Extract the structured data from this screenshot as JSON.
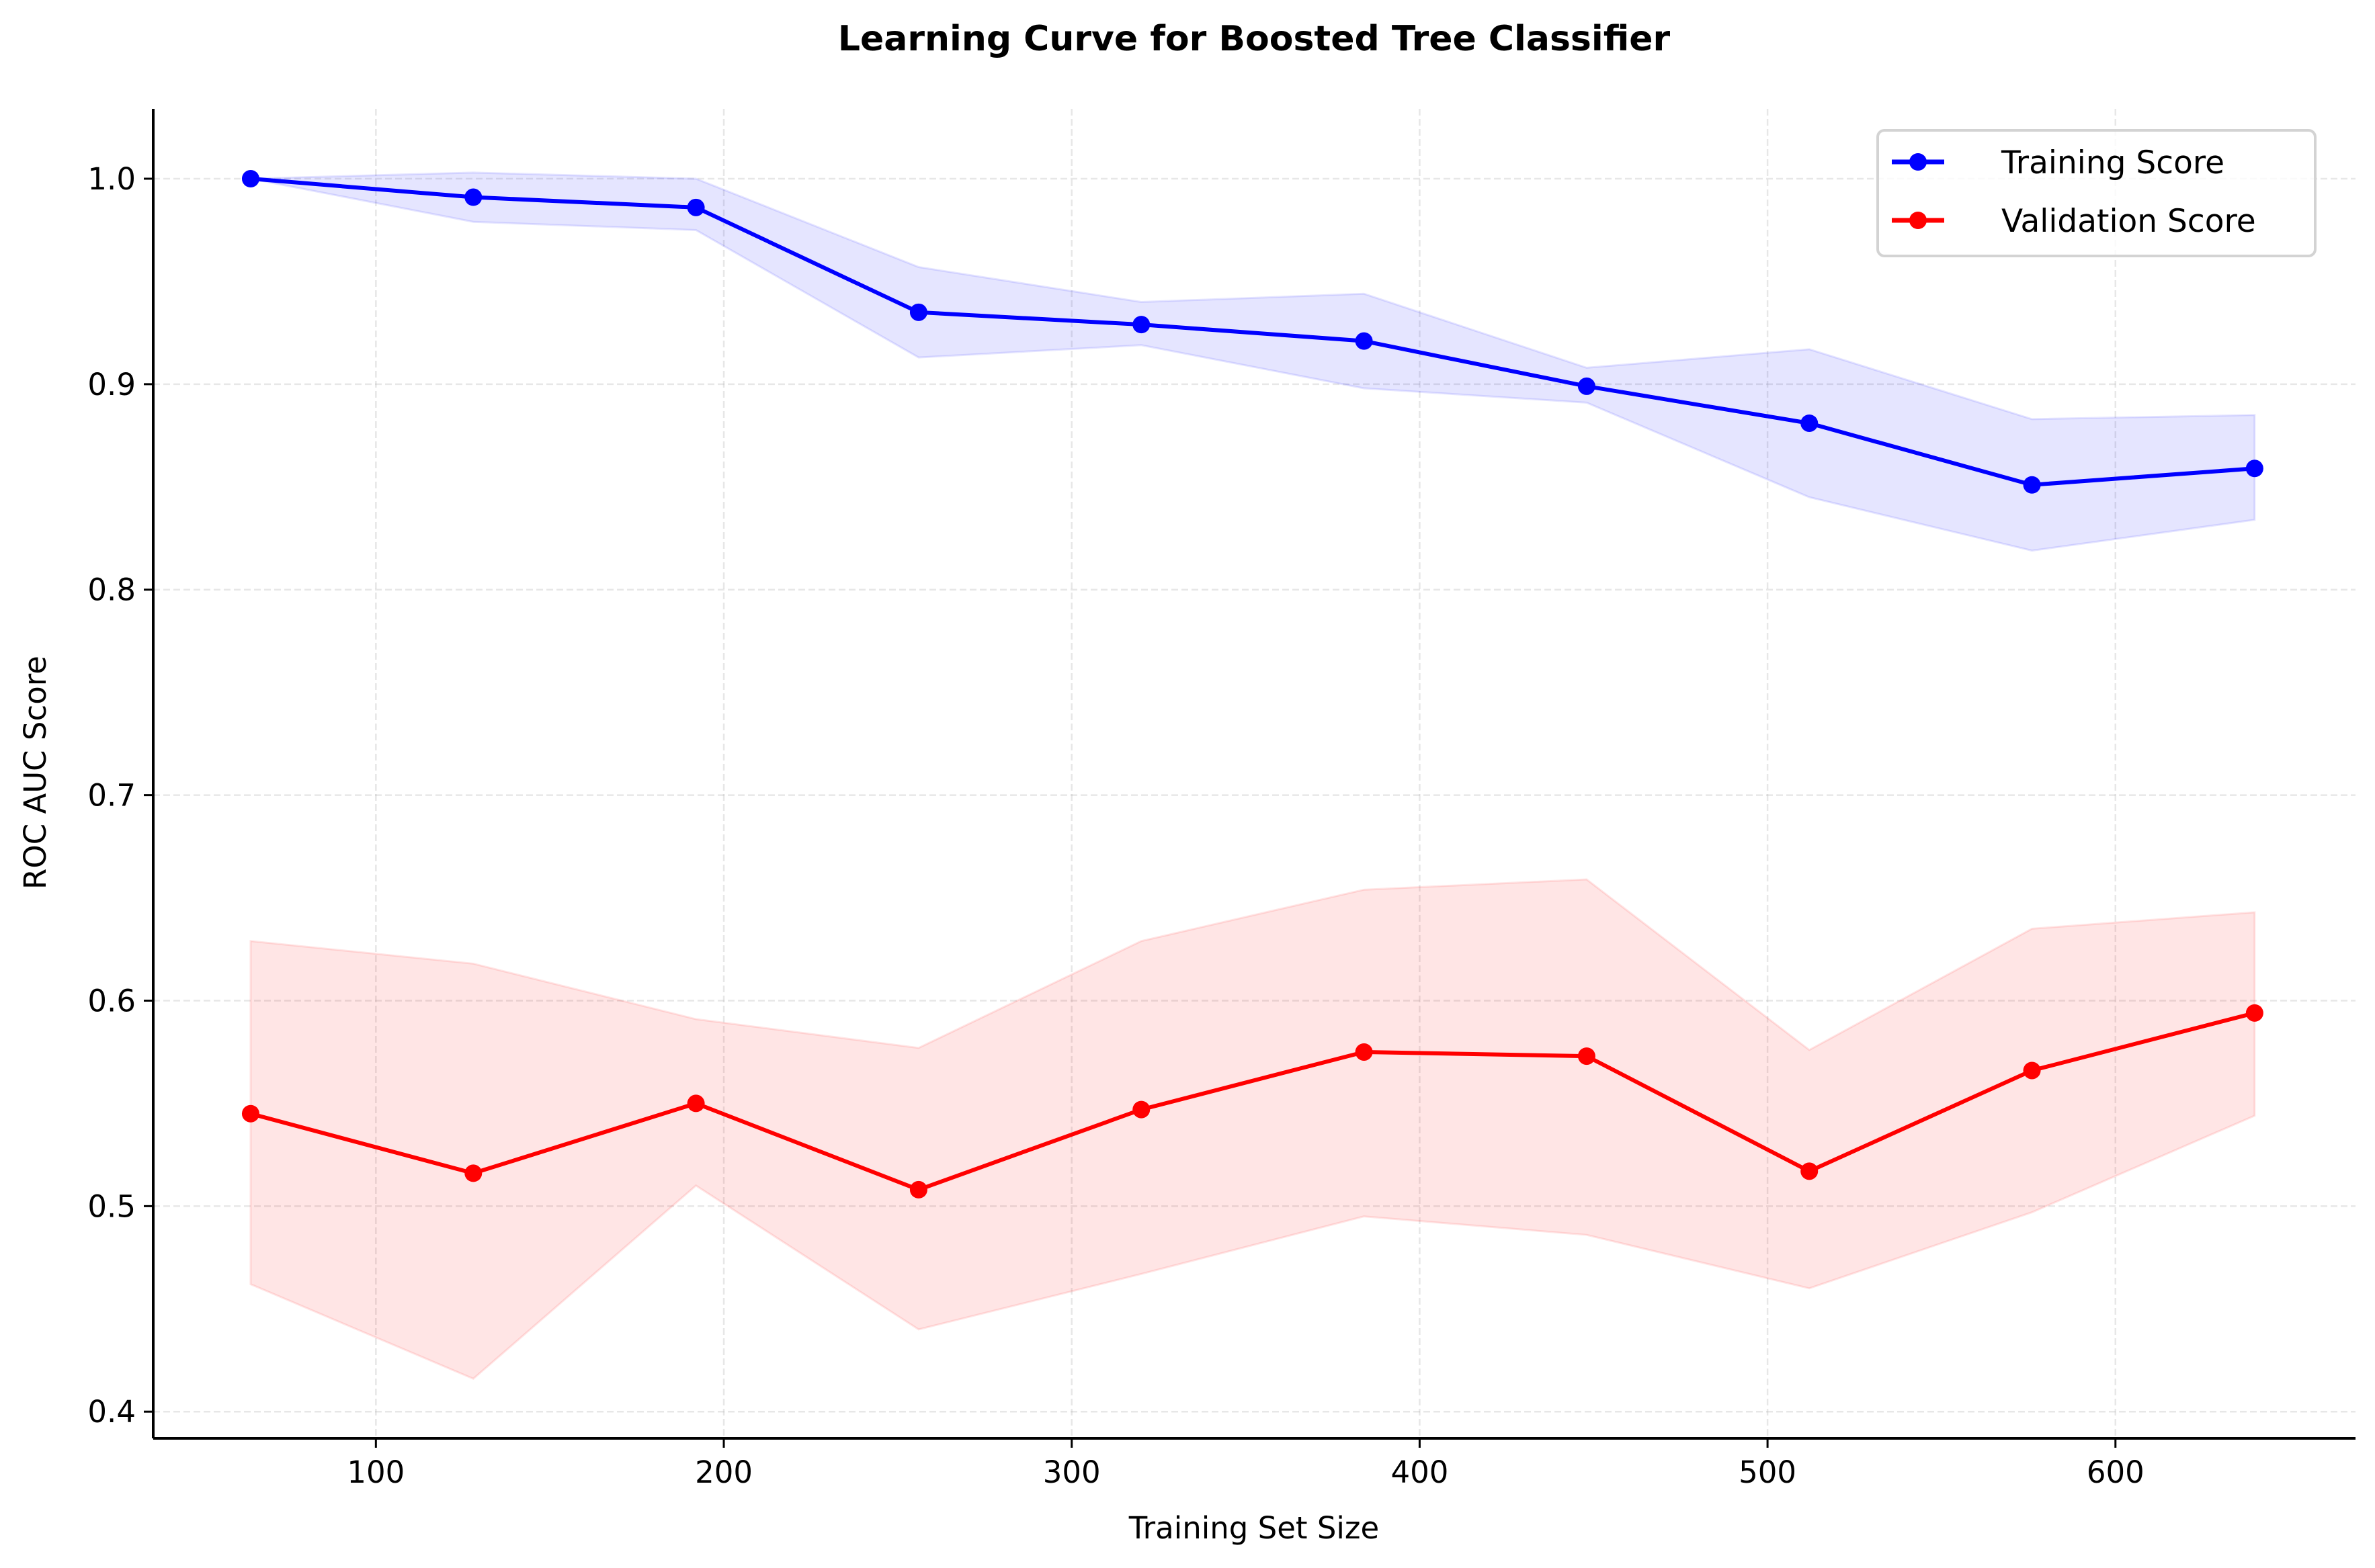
{
  "chart_data": {
    "type": "line",
    "title": "Learning Curve for Boosted Tree Classifier",
    "xlabel": "Training Set Size",
    "ylabel": "ROC AUC Score",
    "xlim": [
      36,
      669
    ],
    "ylim": [
      0.387,
      1.034
    ],
    "xticks": [
      100,
      200,
      300,
      400,
      500,
      600
    ],
    "yticks": [
      0.4,
      0.5,
      0.6,
      0.7,
      0.8,
      0.9,
      1.0
    ],
    "grid": true,
    "legend_placement": "top-right",
    "x": [
      64,
      128,
      192,
      256,
      320,
      384,
      448,
      512,
      576,
      640
    ],
    "series": [
      {
        "name": "Training Score",
        "color": "#0000ff",
        "values": [
          1.0,
          0.991,
          0.986,
          0.935,
          0.929,
          0.921,
          0.899,
          0.881,
          0.851,
          0.859
        ],
        "band_upper": [
          1.0,
          1.003,
          1.0,
          0.957,
          0.94,
          0.944,
          0.908,
          0.917,
          0.883,
          0.885
        ],
        "band_lower": [
          1.0,
          0.979,
          0.975,
          0.913,
          0.919,
          0.898,
          0.891,
          0.845,
          0.819,
          0.834
        ]
      },
      {
        "name": "Validation Score",
        "color": "#ff0000",
        "values": [
          0.545,
          0.516,
          0.55,
          0.508,
          0.547,
          0.575,
          0.573,
          0.517,
          0.566,
          0.594
        ],
        "band_upper": [
          0.629,
          0.618,
          0.591,
          0.577,
          0.629,
          0.654,
          0.659,
          0.576,
          0.635,
          0.643
        ],
        "band_lower": [
          0.462,
          0.416,
          0.51,
          0.44,
          0.467,
          0.495,
          0.486,
          0.46,
          0.497,
          0.544
        ]
      }
    ]
  }
}
